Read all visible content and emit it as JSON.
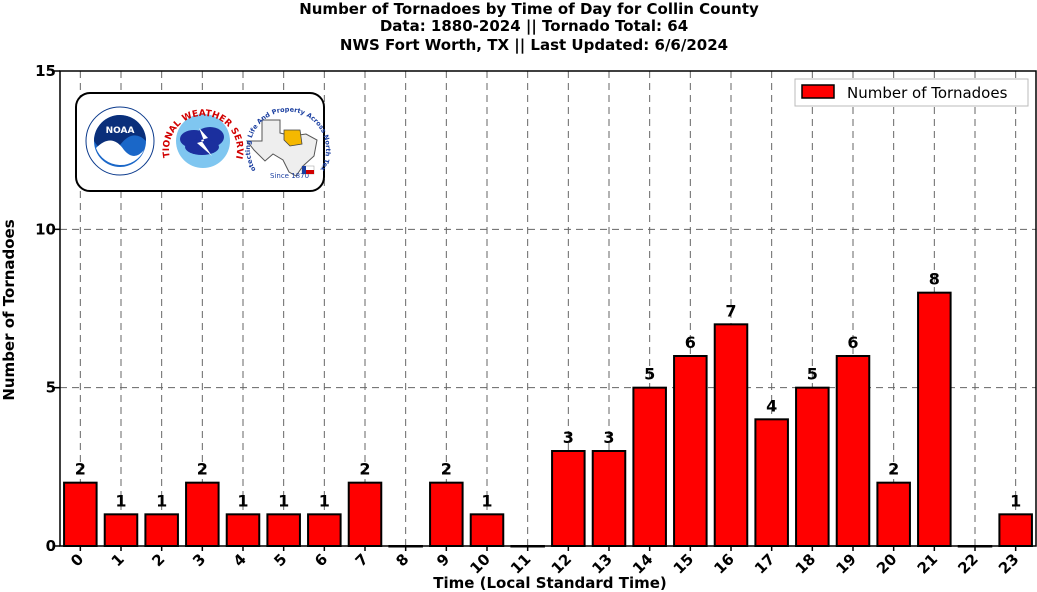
{
  "chart_data": {
    "type": "bar",
    "title": [
      "Number of Tornadoes by Time of Day for Collin County",
      "Data: 1880-2024 || Tornado Total: 64",
      "NWS Fort Worth, TX || Last Updated: 6/6/2024"
    ],
    "xlabel": "Time (Local Standard Time)",
    "ylabel": "Number of Tornadoes",
    "categories": [
      "0",
      "1",
      "2",
      "3",
      "4",
      "5",
      "6",
      "7",
      "8",
      "9",
      "10",
      "11",
      "12",
      "13",
      "14",
      "15",
      "16",
      "17",
      "18",
      "19",
      "20",
      "21",
      "22",
      "23"
    ],
    "series": [
      {
        "name": "Number of Tornadoes",
        "color": "#ff0000",
        "values": [
          2,
          1,
          1,
          2,
          1,
          1,
          1,
          2,
          0,
          2,
          1,
          0,
          3,
          3,
          5,
          6,
          7,
          4,
          5,
          6,
          2,
          8,
          0,
          1
        ]
      }
    ],
    "ylim": [
      0,
      15
    ],
    "yticks": [
      0,
      5,
      10,
      15
    ],
    "grid": true,
    "legend_position": "top-right",
    "logos": {
      "noaa": "NOAA",
      "nws_arc": "NATIONAL WEATHER SERVICE",
      "region_arc": "Protecting Life And Property Across North Texas",
      "since": "Since 1870"
    }
  }
}
